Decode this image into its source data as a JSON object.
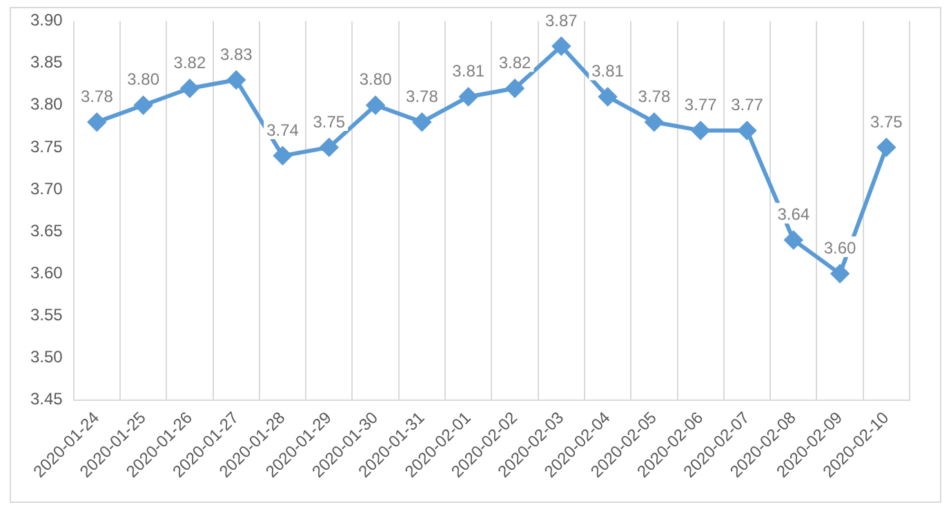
{
  "chart_data": {
    "type": "line",
    "categories": [
      "2020-01-24",
      "2020-01-25",
      "2020-01-26",
      "2020-01-27",
      "2020-01-28",
      "2020-01-29",
      "2020-01-30",
      "2020-01-31",
      "2020-02-01",
      "2020-02-02",
      "2020-02-03",
      "2020-02-04",
      "2020-02-05",
      "2020-02-06",
      "2020-02-07",
      "2020-02-08",
      "2020-02-09",
      "2020-02-10"
    ],
    "series": [
      {
        "color": "#5b9bd5",
        "values": [
          3.78,
          3.8,
          3.82,
          3.83,
          3.74,
          3.75,
          3.8,
          3.78,
          3.81,
          3.82,
          3.87,
          3.81,
          3.78,
          3.77,
          3.77,
          3.64,
          3.6,
          3.75
        ],
        "value_labels": [
          "3.78",
          "3.80",
          "3.82",
          "3.83",
          "3.74",
          "3.75",
          "3.80",
          "3.78",
          "3.81",
          "3.82",
          "3.87",
          "3.81",
          "3.78",
          "3.77",
          "3.77",
          "3.64",
          "3.60",
          "3.75"
        ]
      }
    ],
    "ylim": [
      3.45,
      3.9
    ],
    "yticks": [
      {
        "value": 3.45,
        "label": "3.45"
      },
      {
        "value": 3.5,
        "label": "3.50"
      },
      {
        "value": 3.55,
        "label": "3.55"
      },
      {
        "value": 3.6,
        "label": "3.60"
      },
      {
        "value": 3.65,
        "label": "3.65"
      },
      {
        "value": 3.7,
        "label": "3.70"
      },
      {
        "value": 3.75,
        "label": "3.75"
      },
      {
        "value": 3.8,
        "label": "3.80"
      },
      {
        "value": 3.85,
        "label": "3.85"
      },
      {
        "value": 3.9,
        "label": "3.90"
      }
    ],
    "grid": "x",
    "marker": "diamond",
    "line_style": "solid",
    "legend": false
  }
}
